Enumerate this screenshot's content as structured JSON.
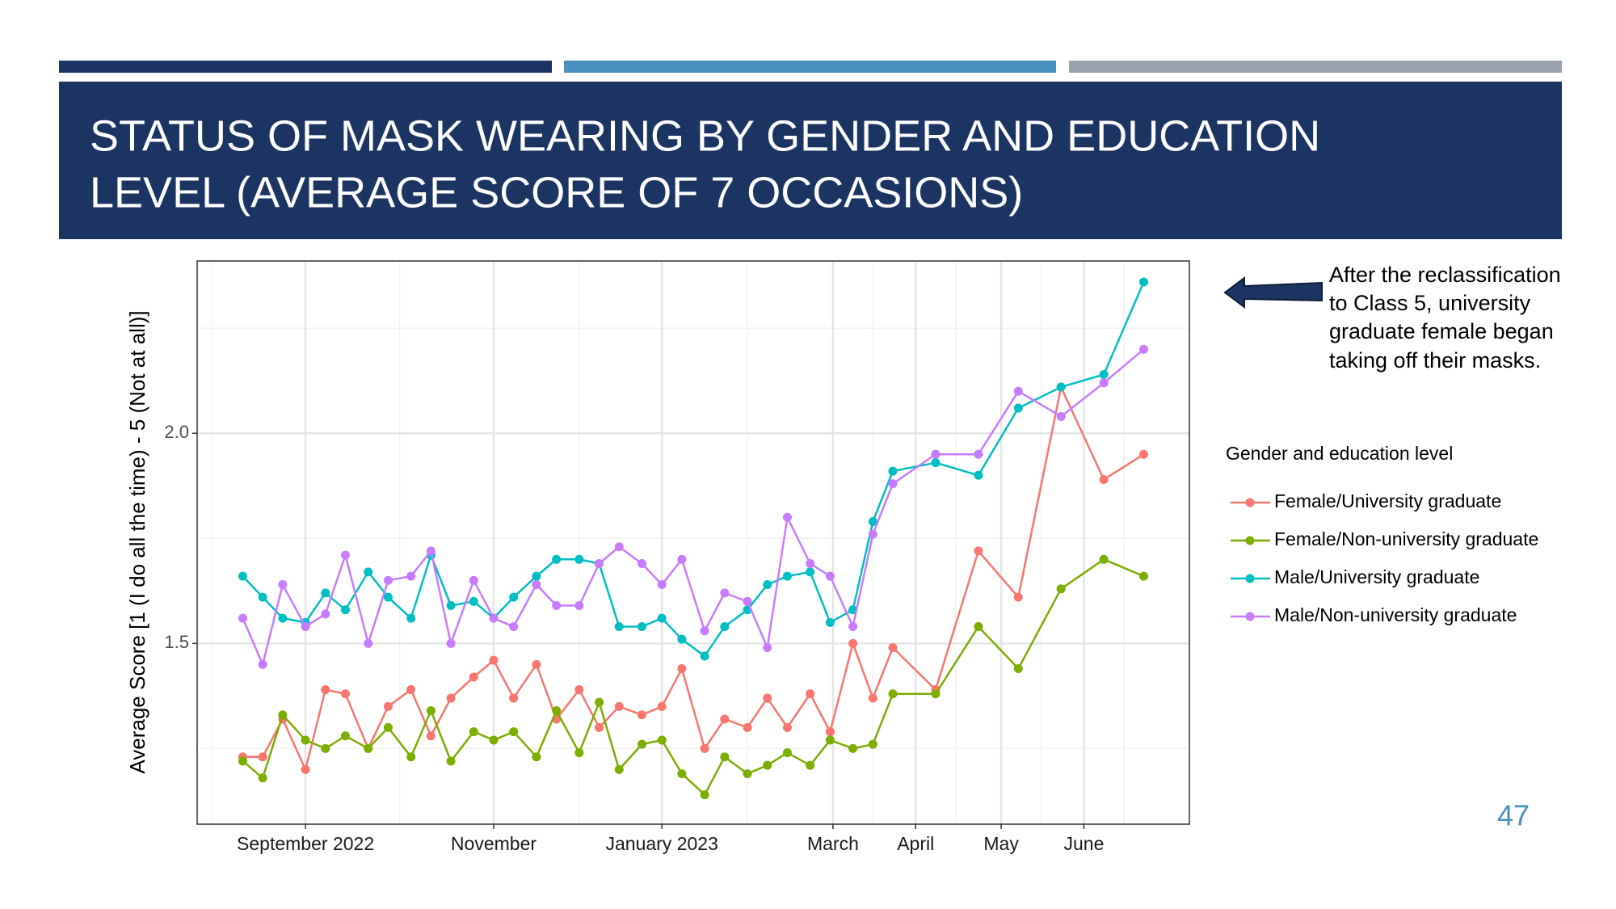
{
  "slide": {
    "title_lines": [
      "STATUS OF MASK WEARING BY GENDER AND EDUCATION",
      "LEVEL (AVERAGE SCORE OF 7 OCCASIONS)"
    ],
    "annotation_lines": [
      "After the reclassification",
      "to Class 5, university",
      "graduate female began",
      "taking off their masks."
    ],
    "page_number": "47"
  },
  "chart_data": {
    "type": "line",
    "y_label": "Average Score [1 (I do all the time) - 5 (Not at all)]",
    "legend_title": "Gender and education level",
    "x": [
      -22,
      -15,
      -8,
      0,
      7,
      14,
      22,
      29,
      37,
      44,
      51,
      59,
      66,
      73,
      81,
      88,
      96,
      103,
      110,
      118,
      125,
      132,
      140,
      147,
      155,
      162,
      169,
      177,
      184,
      192,
      199,
      206,
      221,
      236,
      250,
      265,
      280,
      294
    ],
    "xlim": [
      -38,
      310
    ],
    "xticks": [
      {
        "value": 0,
        "label": "September 2022"
      },
      {
        "value": 66,
        "label": "November"
      },
      {
        "value": 125,
        "label": "January 2023"
      },
      {
        "value": 185,
        "label": "March"
      },
      {
        "value": 214,
        "label": "April"
      },
      {
        "value": 244,
        "label": "May"
      },
      {
        "value": 273,
        "label": "June"
      }
    ],
    "xminor": [
      -33,
      33,
      96,
      155,
      199,
      228,
      258,
      287
    ],
    "ylim": [
      1.07,
      2.41
    ],
    "yticks": [
      1.5,
      {
        "value": 2,
        "label": "2.0"
      }
    ],
    "yminor": [
      1.25,
      1.75,
      2.25
    ],
    "grid": true,
    "series": [
      {
        "name": "Female/University graduate",
        "color": "#f8766d",
        "values": [
          1.23,
          1.23,
          1.32,
          1.2,
          1.39,
          1.38,
          1.25,
          1.35,
          1.39,
          1.28,
          1.37,
          1.42,
          1.46,
          1.37,
          1.45,
          1.32,
          1.39,
          1.3,
          1.35,
          1.33,
          1.35,
          1.44,
          1.25,
          1.32,
          1.3,
          1.37,
          1.3,
          1.38,
          1.29,
          1.5,
          1.37,
          1.49,
          1.39,
          1.72,
          1.61,
          2.11,
          1.89,
          1.95
        ]
      },
      {
        "name": "Female/Non-university graduate",
        "color": "#7cae00",
        "values": [
          1.22,
          1.18,
          1.33,
          1.27,
          1.25,
          1.28,
          1.25,
          1.3,
          1.23,
          1.34,
          1.22,
          1.29,
          1.27,
          1.29,
          1.23,
          1.34,
          1.24,
          1.36,
          1.2,
          1.26,
          1.27,
          1.19,
          1.14,
          1.23,
          1.19,
          1.21,
          1.24,
          1.21,
          1.27,
          1.25,
          1.26,
          1.38,
          1.38,
          1.54,
          1.44,
          1.63,
          1.7,
          1.66
        ]
      },
      {
        "name": "Male/University graduate",
        "color": "#00bfc4",
        "values": [
          1.66,
          1.61,
          1.56,
          1.55,
          1.62,
          1.58,
          1.67,
          1.61,
          1.56,
          1.71,
          1.59,
          1.6,
          1.56,
          1.61,
          1.66,
          1.7,
          1.7,
          1.69,
          1.54,
          1.54,
          1.56,
          1.51,
          1.47,
          1.54,
          1.58,
          1.64,
          1.66,
          1.67,
          1.55,
          1.58,
          1.79,
          1.91,
          1.93,
          1.9,
          2.06,
          2.11,
          2.14,
          2.36
        ]
      },
      {
        "name": "Male/Non-university graduate",
        "color": "#c77cff",
        "values": [
          1.56,
          1.45,
          1.64,
          1.54,
          1.57,
          1.71,
          1.5,
          1.65,
          1.66,
          1.72,
          1.5,
          1.65,
          1.56,
          1.54,
          1.64,
          1.59,
          1.59,
          1.69,
          1.73,
          1.69,
          1.64,
          1.7,
          1.53,
          1.62,
          1.6,
          1.49,
          1.8,
          1.69,
          1.66,
          1.54,
          1.76,
          1.88,
          1.95,
          1.95,
          2.1,
          2.04,
          2.12,
          2.2
        ]
      }
    ]
  }
}
